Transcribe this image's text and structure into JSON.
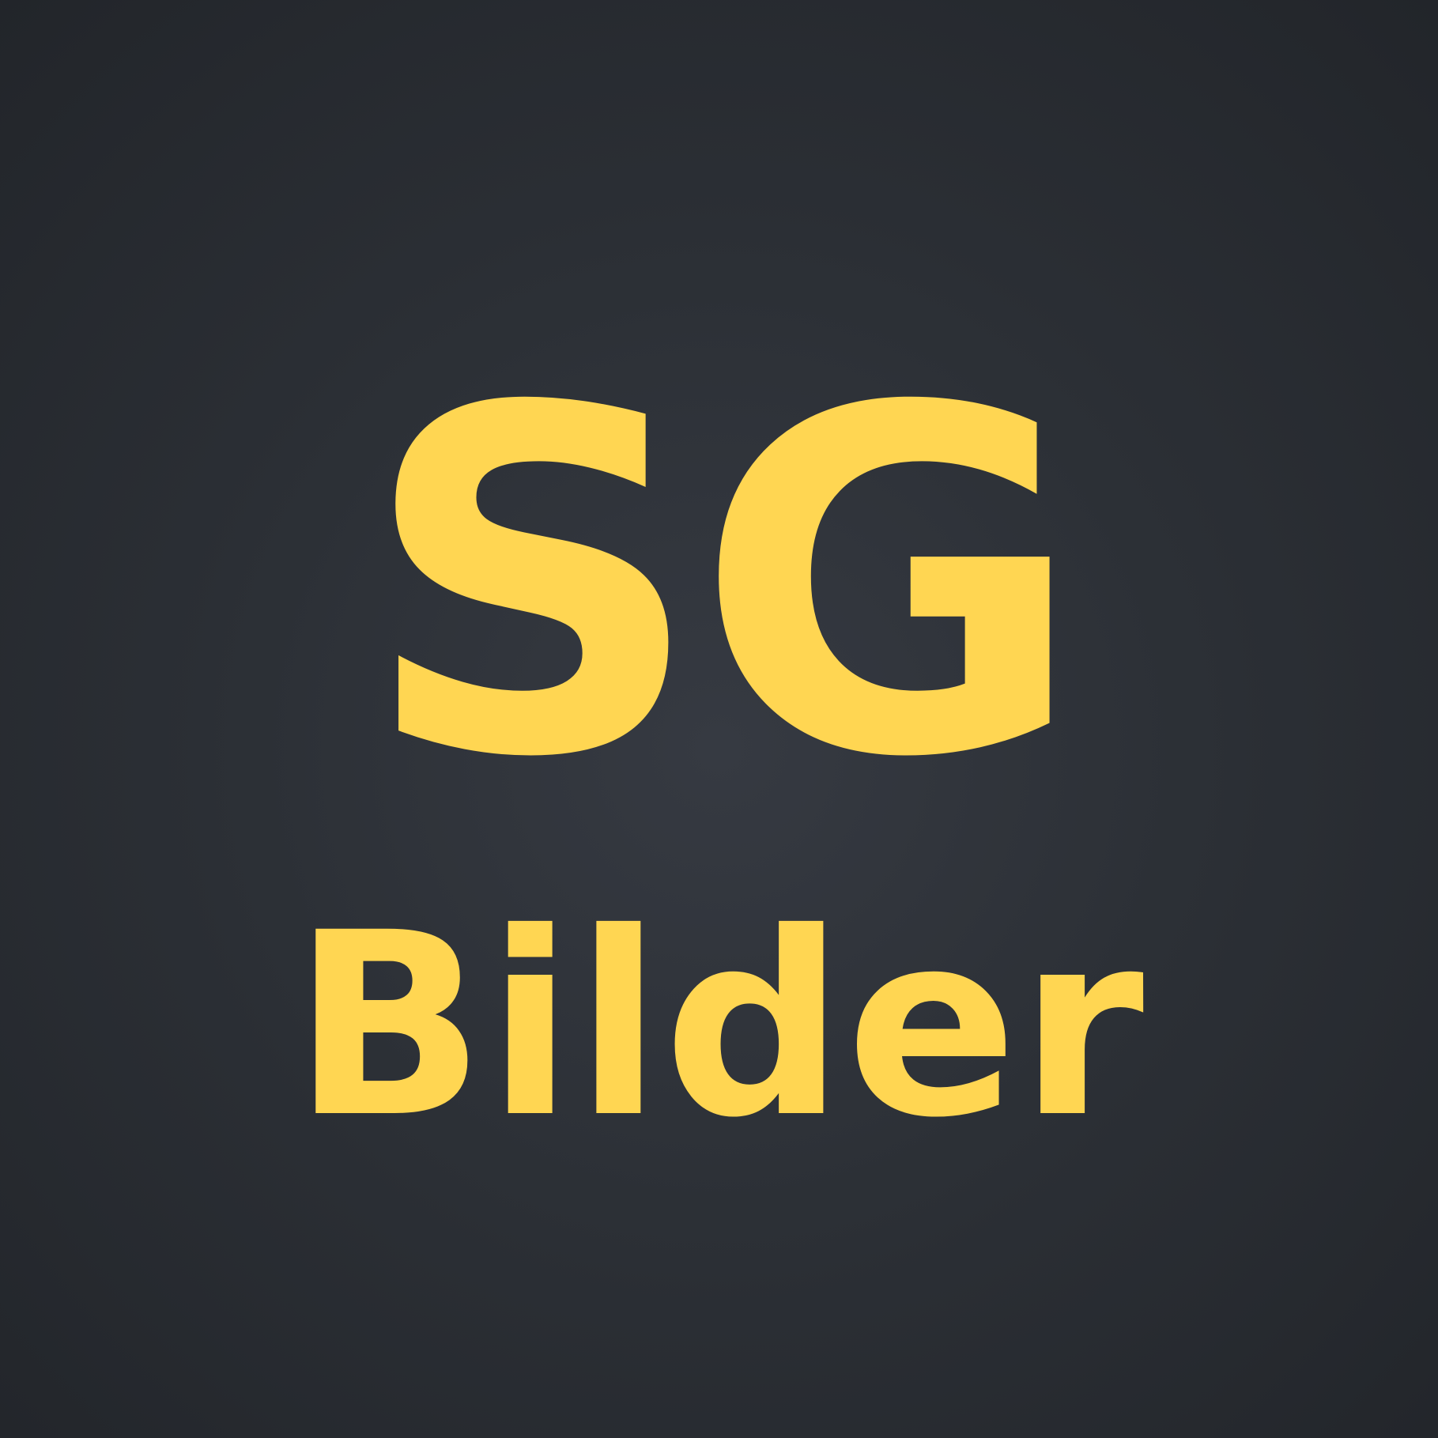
{
  "logo": {
    "monogram": "SG",
    "wordmark": "Bilder"
  },
  "colors": {
    "text": "#ffd652",
    "background_center": "#363a42",
    "background_edge": "#22252a"
  }
}
